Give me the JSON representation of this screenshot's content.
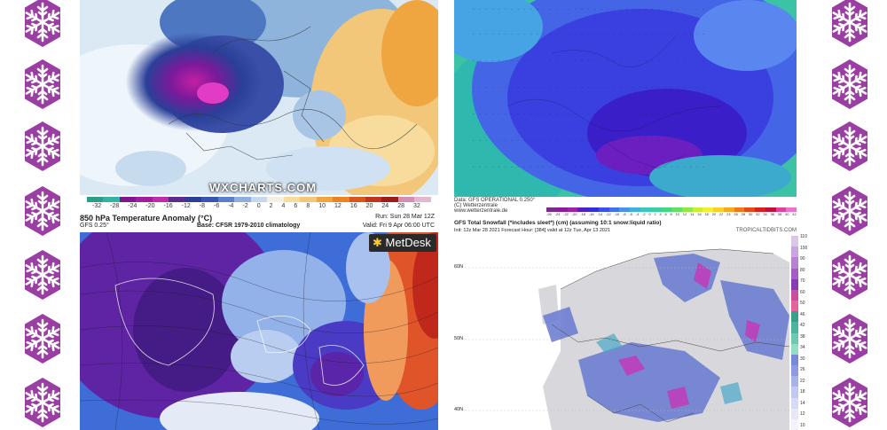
{
  "colors": {
    "snowflake": "#9b3ea3",
    "deep_purple": "#5a0f86",
    "blue": "#3355dd",
    "orange": "#f08020",
    "red": "#d53a1c"
  },
  "icons": [
    "snowflake-icon"
  ],
  "wxcharts": {
    "logo": "WXCHARTS.COM",
    "colorbar_ticks": [
      "-32",
      "-28",
      "-24",
      "-20",
      "-16",
      "-12",
      "-8",
      "-6",
      "-4",
      "-2",
      "0",
      "2",
      "4",
      "6",
      "8",
      "10",
      "12",
      "16",
      "20",
      "24",
      "28",
      "32"
    ]
  },
  "metdesk": {
    "title": "850 hPa Temperature Anomaly (°C)",
    "subtitle_left": "GFS 0.25°",
    "base": "Base: CFSR 1979-2010 climatology",
    "run": "Run: Sun 28 Mar 12Z",
    "valid": "Valid: Fri 9 Apr 06:00 UTC",
    "logo": "MetDesk"
  },
  "wetterzentrale": {
    "line1": "Data: GFS OPERATIONAL 0.250°",
    "line2": "(C) Wetterzentrale",
    "line3": "www.wetterzentrale.de",
    "colorbar_ticks": [
      "-26",
      "-24",
      "-22",
      "-20",
      "-18",
      "-16",
      "-14",
      "-12",
      "-10",
      "-8",
      "-6",
      "-4",
      "-2",
      "0",
      "2",
      "4",
      "6",
      "8",
      "10",
      "12",
      "14",
      "16",
      "18",
      "20",
      "22",
      "24",
      "26",
      "28",
      "30",
      "32",
      "34",
      "36",
      "38",
      "40",
      "42"
    ]
  },
  "tropicaltidbits": {
    "site": "TROPICALTIDBITS.COM",
    "title": "GFS Total Snowfall (*includes sleet*) (cm) (assuming 10:1 snow:liquid ratio)",
    "info": "Init: 12z Mar 28 2021   Forecast Hour: [384]   valid at 12z Tue, Apr 13 2021",
    "lat_labels": [
      "60N",
      "50N",
      "40N"
    ],
    "colorbar_ticks": [
      "110",
      "100",
      "90",
      "80",
      "70",
      "60",
      "50",
      "46",
      "42",
      "38",
      "34",
      "30",
      "26",
      "22",
      "18",
      "14",
      "12",
      "10"
    ]
  }
}
